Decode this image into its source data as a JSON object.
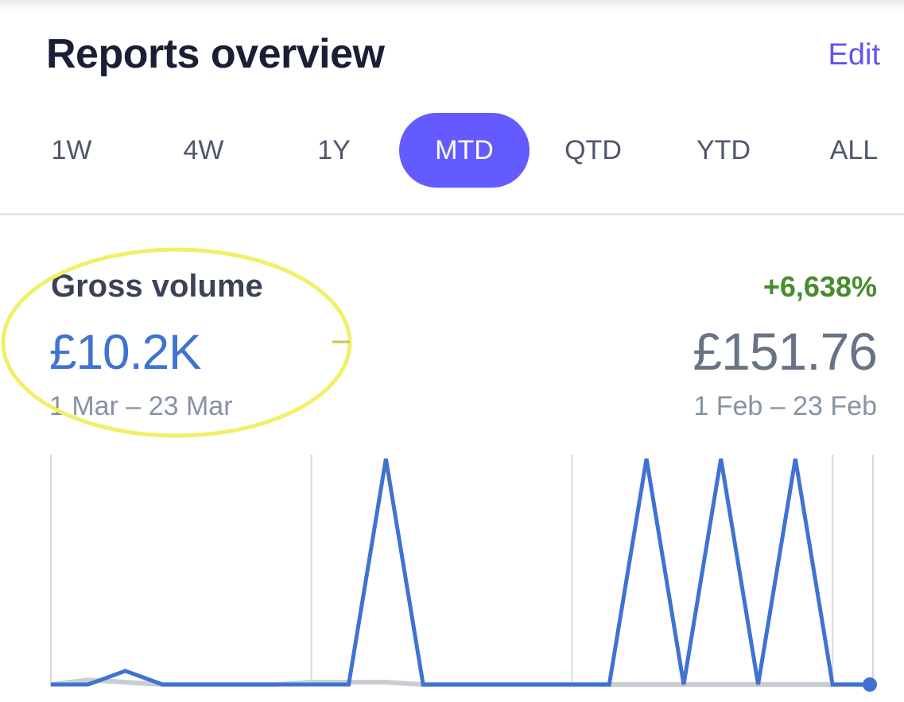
{
  "header": {
    "title": "Reports overview",
    "edit_label": "Edit"
  },
  "range_tabs": [
    {
      "label": "1W",
      "active": false
    },
    {
      "label": "4W",
      "active": false
    },
    {
      "label": "1Y",
      "active": false
    },
    {
      "label": "MTD",
      "active": true
    },
    {
      "label": "QTD",
      "active": false
    },
    {
      "label": "YTD",
      "active": false
    },
    {
      "label": "ALL",
      "active": false
    }
  ],
  "metric": {
    "name": "Gross volume",
    "value": "£10.2K",
    "range": "1 Mar – 23 Mar",
    "change": "+6,638%",
    "compare_value": "£151.76",
    "compare_range": "1 Feb – 23 Feb"
  },
  "colors": {
    "accent": "#635bff",
    "current_series": "#3f73d1",
    "previous_series": "#c8cdd4",
    "positive": "#4a8a2e",
    "highlight": "#f2ef6a"
  },
  "chart_data": {
    "type": "line",
    "x": [
      1,
      2,
      3,
      4,
      5,
      6,
      7,
      8,
      9,
      10,
      11,
      12,
      13,
      14,
      15,
      16,
      17,
      18,
      19,
      20,
      21,
      22,
      23
    ],
    "series": [
      {
        "values": [
          0.0,
          0.0,
          0.06,
          0.0,
          0.0,
          0.0,
          0.0,
          0.0,
          0.0,
          1.0,
          0.0,
          0.0,
          0.0,
          0.0,
          0.0,
          0.0,
          1.0,
          0.0,
          1.0,
          0.0,
          1.0,
          0.0,
          0.0
        ]
      },
      {
        "values": [
          0.0,
          0.02,
          0.01,
          0.0,
          0.0,
          0.0,
          0.0,
          0.01,
          0.01,
          0.01,
          0.0,
          0.0,
          0.0,
          0.0,
          0.0,
          0.0,
          0.0,
          0.0,
          0.0,
          0.0,
          0.0,
          0.0,
          0.0
        ]
      }
    ],
    "gridlines_at_x": [
      1,
      8,
      15,
      22
    ],
    "grid": true
  }
}
